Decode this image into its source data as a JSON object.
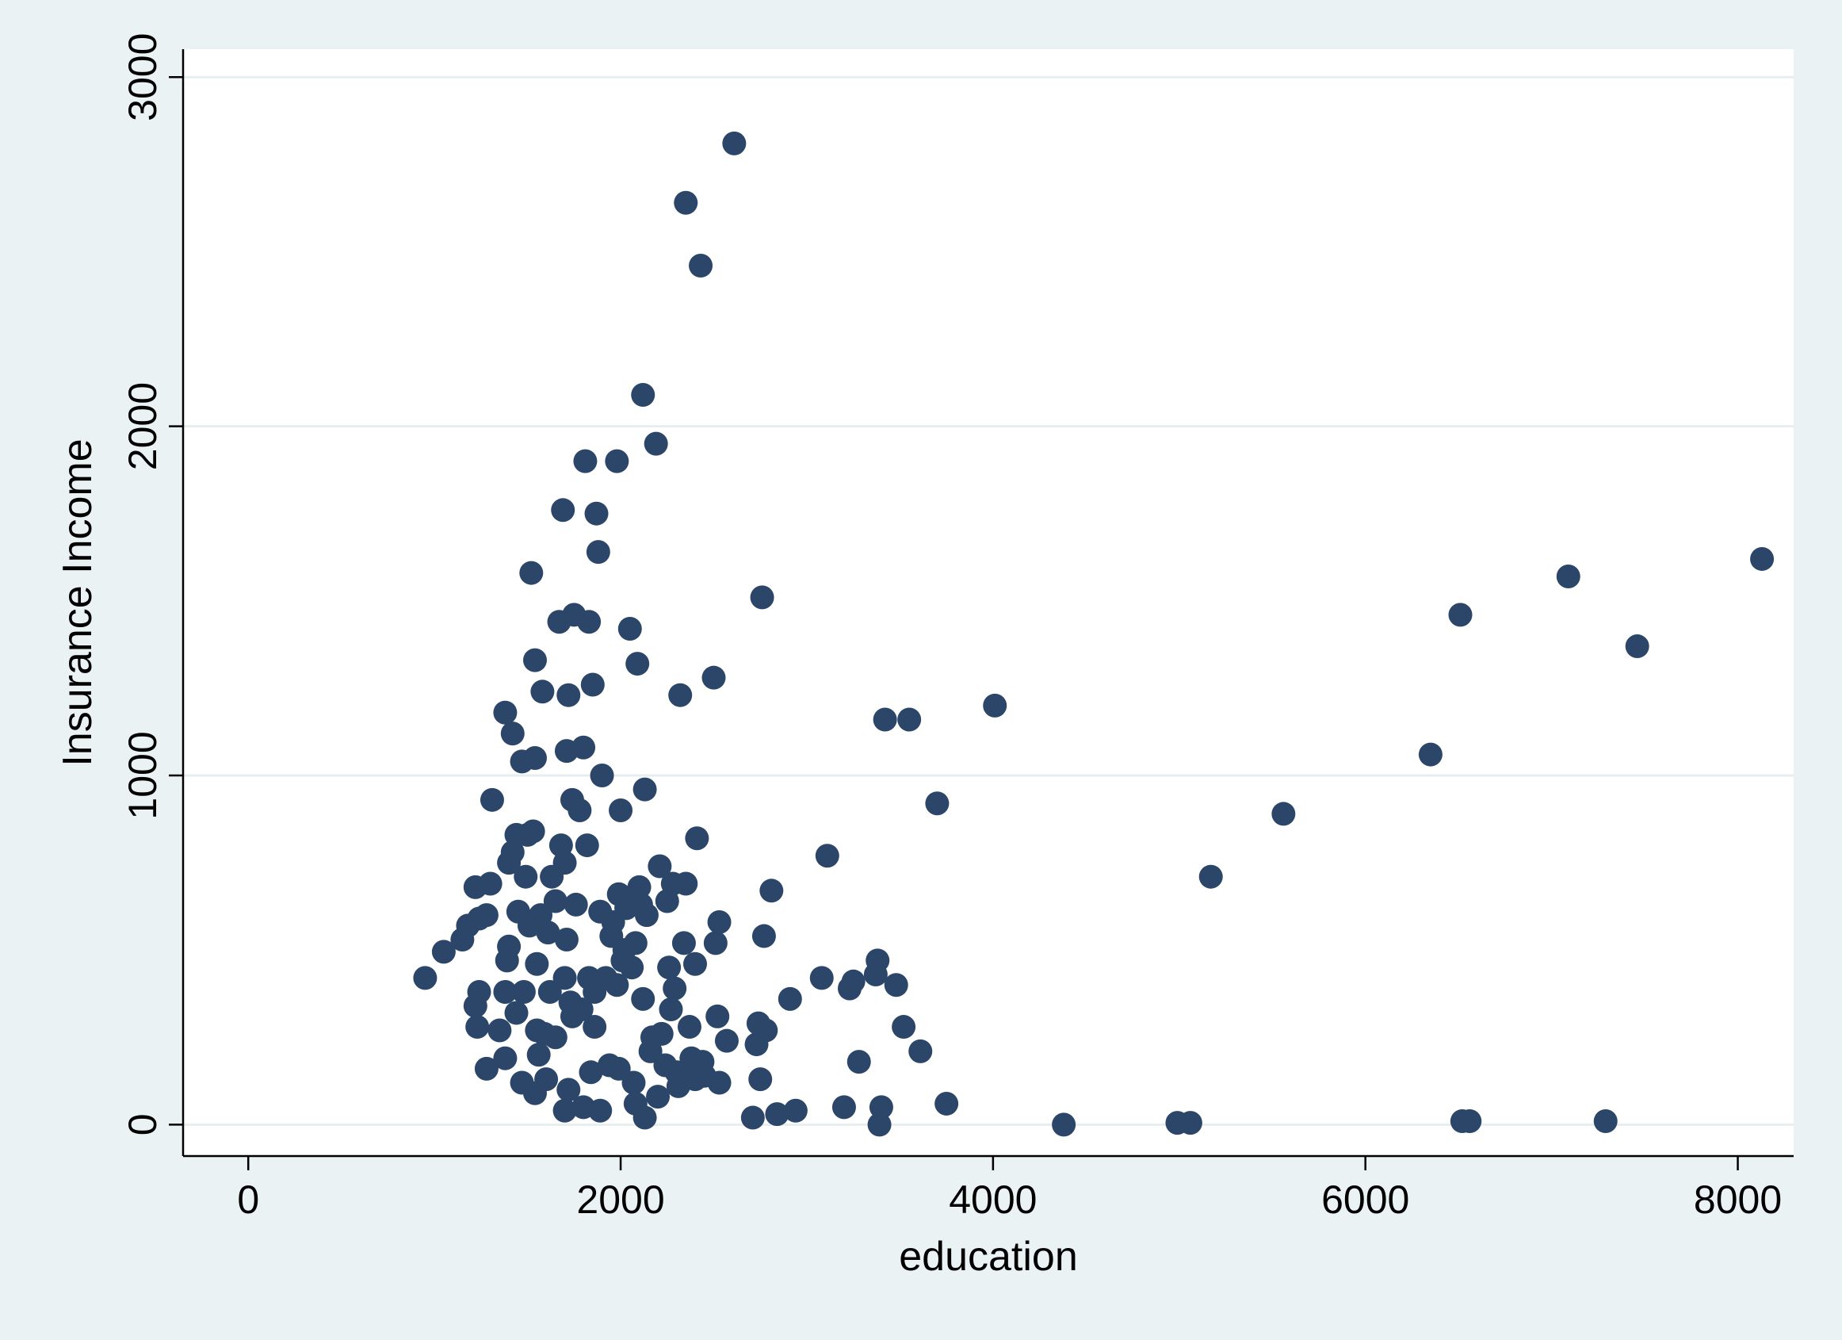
{
  "chart_data": {
    "type": "scatter",
    "title": "",
    "xlabel": "education",
    "ylabel": "Insurance Income",
    "xlim": [
      -350,
      8300
    ],
    "ylim": [
      -90,
      3080
    ],
    "xticks": [
      0,
      2000,
      4000,
      6000,
      8000
    ],
    "yticks": [
      0,
      1000,
      2000,
      3000
    ],
    "xtick_labels": [
      "0",
      "2000",
      "4000",
      "6000",
      "8000"
    ],
    "ytick_labels": [
      "0",
      "1000",
      "2000",
      "3000"
    ],
    "grid": "horizontal",
    "legend": "none",
    "colors": {
      "marker": "#2b4668",
      "plot_bg": "#ffffff",
      "outer_bg": "#eaf2f3",
      "grid": "#e6eef0"
    },
    "series": [
      {
        "points": [
          [
            950,
            420
          ],
          [
            1050,
            495
          ],
          [
            1150,
            530
          ],
          [
            1180,
            570
          ],
          [
            1220,
            680
          ],
          [
            1240,
            590
          ],
          [
            1280,
            600
          ],
          [
            1300,
            690
          ],
          [
            1310,
            930
          ],
          [
            1220,
            340
          ],
          [
            1240,
            380
          ],
          [
            1230,
            280
          ],
          [
            1280,
            160
          ],
          [
            1350,
            270
          ],
          [
            1380,
            1180
          ],
          [
            1380,
            380
          ],
          [
            1390,
            470
          ],
          [
            1400,
            510
          ],
          [
            1380,
            190
          ],
          [
            1400,
            750
          ],
          [
            1420,
            780
          ],
          [
            1440,
            830
          ],
          [
            1420,
            1120
          ],
          [
            1440,
            320
          ],
          [
            1450,
            610
          ],
          [
            1470,
            1040
          ],
          [
            1480,
            380
          ],
          [
            1470,
            120
          ],
          [
            1490,
            710
          ],
          [
            1500,
            830
          ],
          [
            1510,
            570
          ],
          [
            1520,
            1580
          ],
          [
            1530,
            840
          ],
          [
            1540,
            1330
          ],
          [
            1540,
            1050
          ],
          [
            1550,
            460
          ],
          [
            1550,
            270
          ],
          [
            1560,
            200
          ],
          [
            1540,
            90
          ],
          [
            1570,
            600
          ],
          [
            1580,
            1240
          ],
          [
            1590,
            260
          ],
          [
            1600,
            130
          ],
          [
            1610,
            550
          ],
          [
            1620,
            380
          ],
          [
            1630,
            710
          ],
          [
            1650,
            640
          ],
          [
            1650,
            250
          ],
          [
            1670,
            1440
          ],
          [
            1680,
            800
          ],
          [
            1690,
            1760
          ],
          [
            1700,
            750
          ],
          [
            1700,
            40
          ],
          [
            1700,
            420
          ],
          [
            1710,
            1070
          ],
          [
            1710,
            530
          ],
          [
            1720,
            1230
          ],
          [
            1720,
            100
          ],
          [
            1730,
            350
          ],
          [
            1740,
            930
          ],
          [
            1740,
            310
          ],
          [
            1750,
            1460
          ],
          [
            1760,
            630
          ],
          [
            1780,
            900
          ],
          [
            1790,
            330
          ],
          [
            1800,
            50
          ],
          [
            1800,
            1080
          ],
          [
            1810,
            1900
          ],
          [
            1820,
            800
          ],
          [
            1830,
            1440
          ],
          [
            1830,
            420
          ],
          [
            1840,
            150
          ],
          [
            1850,
            1260
          ],
          [
            1860,
            380
          ],
          [
            1860,
            280
          ],
          [
            1870,
            1750
          ],
          [
            1880,
            1640
          ],
          [
            1890,
            610
          ],
          [
            1890,
            40
          ],
          [
            1900,
            1000
          ],
          [
            1920,
            420
          ],
          [
            1940,
            170
          ],
          [
            1950,
            540
          ],
          [
            1960,
            580
          ],
          [
            1980,
            1900
          ],
          [
            1980,
            400
          ],
          [
            1990,
            660
          ],
          [
            1990,
            160
          ],
          [
            2000,
            900
          ],
          [
            2010,
            470
          ],
          [
            2020,
            500
          ],
          [
            2030,
            620
          ],
          [
            2050,
            1420
          ],
          [
            2060,
            450
          ],
          [
            2060,
            650
          ],
          [
            2070,
            120
          ],
          [
            2080,
            520
          ],
          [
            2080,
            60
          ],
          [
            2090,
            1320
          ],
          [
            2100,
            680
          ],
          [
            2110,
            630
          ],
          [
            2120,
            2090
          ],
          [
            2120,
            360
          ],
          [
            2130,
            960
          ],
          [
            2130,
            20
          ],
          [
            2140,
            600
          ],
          [
            2160,
            210
          ],
          [
            2170,
            250
          ],
          [
            2190,
            1950
          ],
          [
            2200,
            80
          ],
          [
            2210,
            740
          ],
          [
            2220,
            260
          ],
          [
            2240,
            170
          ],
          [
            2250,
            640
          ],
          [
            2260,
            450
          ],
          [
            2270,
            330
          ],
          [
            2280,
            690
          ],
          [
            2290,
            390
          ],
          [
            2300,
            150
          ],
          [
            2310,
            110
          ],
          [
            2320,
            1230
          ],
          [
            2340,
            520
          ],
          [
            2350,
            2640
          ],
          [
            2350,
            690
          ],
          [
            2370,
            280
          ],
          [
            2380,
            190
          ],
          [
            2400,
            460
          ],
          [
            2400,
            130
          ],
          [
            2410,
            820
          ],
          [
            2430,
            2460
          ],
          [
            2440,
            180
          ],
          [
            2450,
            140
          ],
          [
            2500,
            1280
          ],
          [
            2510,
            520
          ],
          [
            2520,
            310
          ],
          [
            2530,
            580
          ],
          [
            2530,
            120
          ],
          [
            2570,
            240
          ],
          [
            2610,
            2810
          ],
          [
            2710,
            20
          ],
          [
            2730,
            230
          ],
          [
            2740,
            290
          ],
          [
            2750,
            130
          ],
          [
            2760,
            1510
          ],
          [
            2770,
            540
          ],
          [
            2780,
            270
          ],
          [
            2810,
            670
          ],
          [
            2840,
            30
          ],
          [
            2910,
            360
          ],
          [
            2940,
            40
          ],
          [
            3080,
            420
          ],
          [
            3110,
            770
          ],
          [
            3200,
            50
          ],
          [
            3230,
            390
          ],
          [
            3250,
            410
          ],
          [
            3280,
            180
          ],
          [
            3370,
            430
          ],
          [
            3380,
            470
          ],
          [
            3390,
            0
          ],
          [
            3400,
            50
          ],
          [
            3420,
            1160
          ],
          [
            3480,
            400
          ],
          [
            3520,
            280
          ],
          [
            3550,
            1160
          ],
          [
            3610,
            210
          ],
          [
            3700,
            920
          ],
          [
            3750,
            60
          ],
          [
            4010,
            1200
          ],
          [
            4380,
            0
          ],
          [
            4990,
            5
          ],
          [
            5060,
            5
          ],
          [
            5170,
            710
          ],
          [
            5560,
            890
          ],
          [
            6350,
            1060
          ],
          [
            6510,
            1460
          ],
          [
            6520,
            10
          ],
          [
            6560,
            10
          ],
          [
            7090,
            1570
          ],
          [
            7290,
            10
          ],
          [
            7460,
            1370
          ],
          [
            8130,
            1620
          ]
        ]
      }
    ]
  }
}
